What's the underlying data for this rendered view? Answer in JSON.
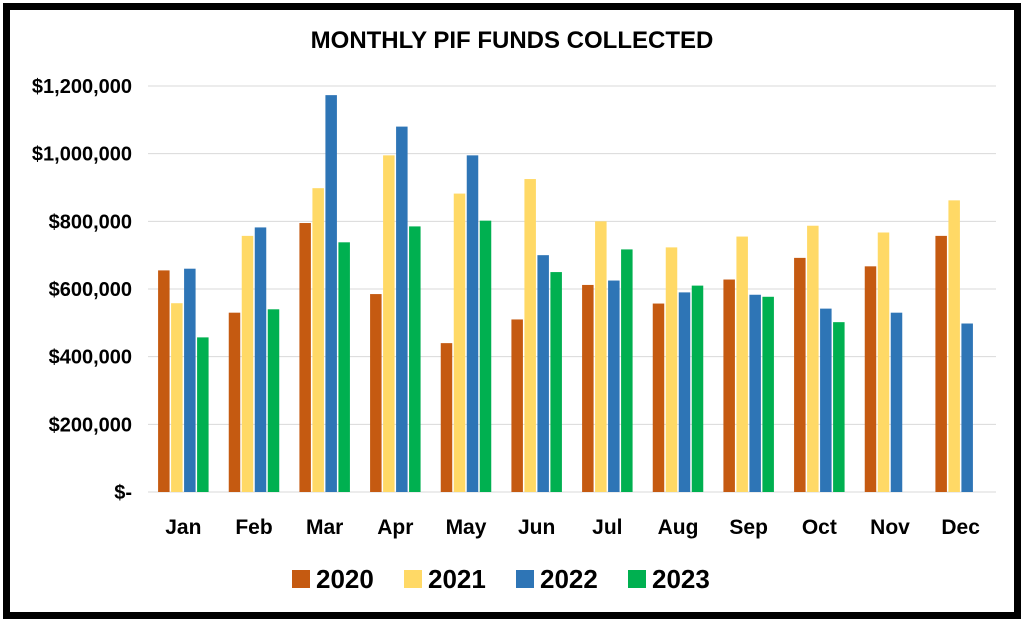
{
  "chart_data": {
    "type": "bar",
    "title": "MONTHLY PIF FUNDS COLLECTED",
    "xlabel": "",
    "ylabel": "",
    "categories": [
      "Jan",
      "Feb",
      "Mar",
      "Apr",
      "May",
      "Jun",
      "Jul",
      "Aug",
      "Sep",
      "Oct",
      "Nov",
      "Dec"
    ],
    "series": [
      {
        "name": "2020",
        "color": "#c55a11",
        "values": [
          655000,
          530000,
          795000,
          585000,
          440000,
          510000,
          612000,
          557000,
          628000,
          692000,
          667000,
          757000
        ]
      },
      {
        "name": "2021",
        "color": "#ffd966",
        "values": [
          558000,
          757000,
          898000,
          995000,
          882000,
          925000,
          800000,
          723000,
          755000,
          787000,
          767000,
          862000
        ]
      },
      {
        "name": "2022",
        "color": "#2e75b6",
        "values": [
          660000,
          782000,
          1173000,
          1080000,
          995000,
          700000,
          625000,
          590000,
          583000,
          542000,
          530000,
          498000
        ]
      },
      {
        "name": "2023",
        "color": "#00b050",
        "values": [
          457000,
          540000,
          738000,
          785000,
          802000,
          650000,
          717000,
          610000,
          577000,
          502000,
          null,
          null
        ]
      }
    ],
    "ylim": [
      0,
      1200000
    ],
    "yticks": [
      {
        "value": 0,
        "label": "$-"
      },
      {
        "value": 200000,
        "label": "$200,000"
      },
      {
        "value": 400000,
        "label": "$400,000"
      },
      {
        "value": 600000,
        "label": "$600,000"
      },
      {
        "value": 800000,
        "label": "$800,000"
      },
      {
        "value": 1000000,
        "label": "$1,000,000"
      },
      {
        "value": 1200000,
        "label": "$1,200,000"
      }
    ],
    "grid": true,
    "legend_position": "bottom"
  }
}
